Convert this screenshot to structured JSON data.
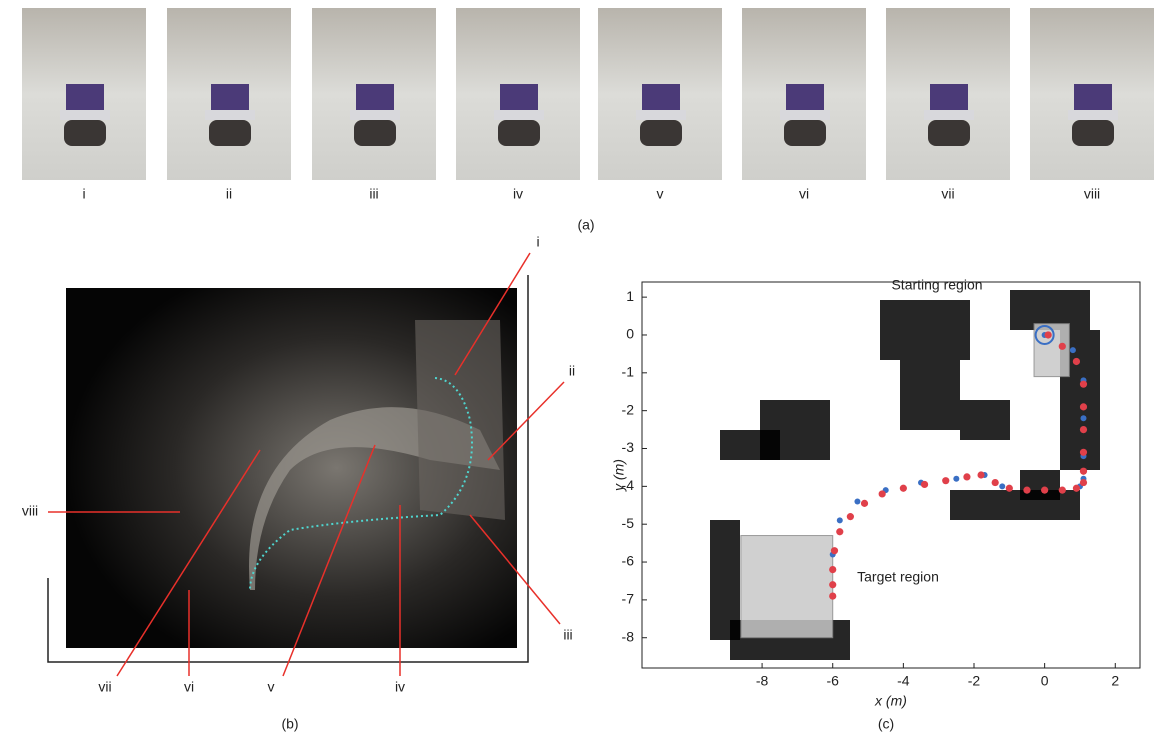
{
  "panel_a": {
    "label": "(a)",
    "photos": [
      "i",
      "ii",
      "iii",
      "iv",
      "v",
      "vi",
      "vii",
      "viii"
    ]
  },
  "panel_b": {
    "label": "(b)",
    "markers": [
      "i",
      "ii",
      "iii",
      "iv",
      "v",
      "vi",
      "vii",
      "viii"
    ]
  },
  "chart_data": {
    "type": "scatter",
    "label": "(c)",
    "xlabel": "x (m)",
    "ylabel": "y (m)",
    "xlim": [
      -11.4,
      2.7
    ],
    "ylim": [
      -8.8,
      1.4
    ],
    "xticks": [
      -8,
      -6,
      -4,
      -2,
      0,
      2
    ],
    "yticks": [
      1,
      0,
      -1,
      -2,
      -3,
      -4,
      -5,
      -6,
      -7,
      -8
    ],
    "regions": [
      {
        "label": "Starting region",
        "x": [
          -0.3,
          0.7
        ],
        "y": [
          -1.1,
          0.3
        ]
      },
      {
        "label": "Target region",
        "x": [
          -8.6,
          -6
        ],
        "y": [
          -8,
          -5.3
        ]
      }
    ],
    "series": [
      {
        "color": "#3a6fc4",
        "x": [
          0,
          0.8,
          1.1,
          1.1,
          1.1,
          1.1,
          1.0,
          0.5,
          -0.5,
          -1.2,
          -1.7,
          -2.5,
          -3.5,
          -4.5,
          -5.3,
          -5.8,
          -6,
          -6
        ],
        "y": [
          0,
          -0.4,
          -1.2,
          -2.2,
          -3.2,
          -3.8,
          -4.0,
          -4.1,
          -4.1,
          -4.0,
          -3.7,
          -3.8,
          -3.9,
          -4.1,
          -4.4,
          -4.9,
          -5.8,
          -6.9
        ]
      },
      {
        "color": "#e0404a",
        "x": [
          0.1,
          0.5,
          0.9,
          1.1,
          1.1,
          1.1,
          1.1,
          1.1,
          1.1,
          0.9,
          0.5,
          0,
          -0.5,
          -1.0,
          -1.4,
          -1.8,
          -2.2,
          -2.8,
          -3.4,
          -4.0,
          -4.6,
          -5.1,
          -5.5,
          -5.8,
          -5.95,
          -6,
          -6,
          -6
        ],
        "y": [
          0,
          -0.3,
          -0.7,
          -1.3,
          -1.9,
          -2.5,
          -3.1,
          -3.6,
          -3.9,
          -4.05,
          -4.1,
          -4.1,
          -4.1,
          -4.05,
          -3.9,
          -3.7,
          -3.75,
          -3.85,
          -3.95,
          -4.05,
          -4.2,
          -4.45,
          -4.8,
          -5.2,
          -5.7,
          -6.2,
          -6.6,
          -6.9
        ]
      }
    ]
  }
}
